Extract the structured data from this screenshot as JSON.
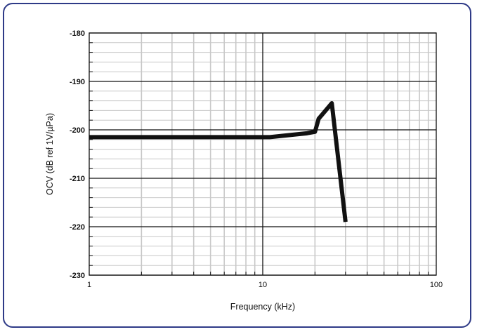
{
  "chart_data": {
    "type": "line",
    "title": "",
    "xlabel": "Frequency (kHz)",
    "ylabel": "OCV (dB ref 1V/µPa)",
    "x_scale": "log",
    "xlim": [
      1,
      100
    ],
    "ylim": [
      -230,
      -180
    ],
    "x_ticks": [
      1,
      10,
      100
    ],
    "x_tick_labels": [
      "1",
      "10",
      "100"
    ],
    "y_ticks": [
      -180,
      -190,
      -200,
      -210,
      -220,
      -230
    ],
    "y_tick_labels": [
      "-180",
      "-190",
      "-200",
      "-210",
      "-220",
      "-230"
    ],
    "grid": true,
    "series": [
      {
        "color": "#111111",
        "x": [
          1,
          2,
          5,
          10,
          11,
          15,
          18,
          20,
          21,
          25,
          30
        ],
        "y": [
          -201.5,
          -201.5,
          -201.5,
          -201.5,
          -201.5,
          -201,
          -200.7,
          -200.4,
          -197.7,
          -194.5,
          -219
        ]
      }
    ]
  },
  "colors": {
    "frame_border": "#2e3a87",
    "grid_major": "#111111",
    "grid_minor": "#c8c8c8"
  }
}
